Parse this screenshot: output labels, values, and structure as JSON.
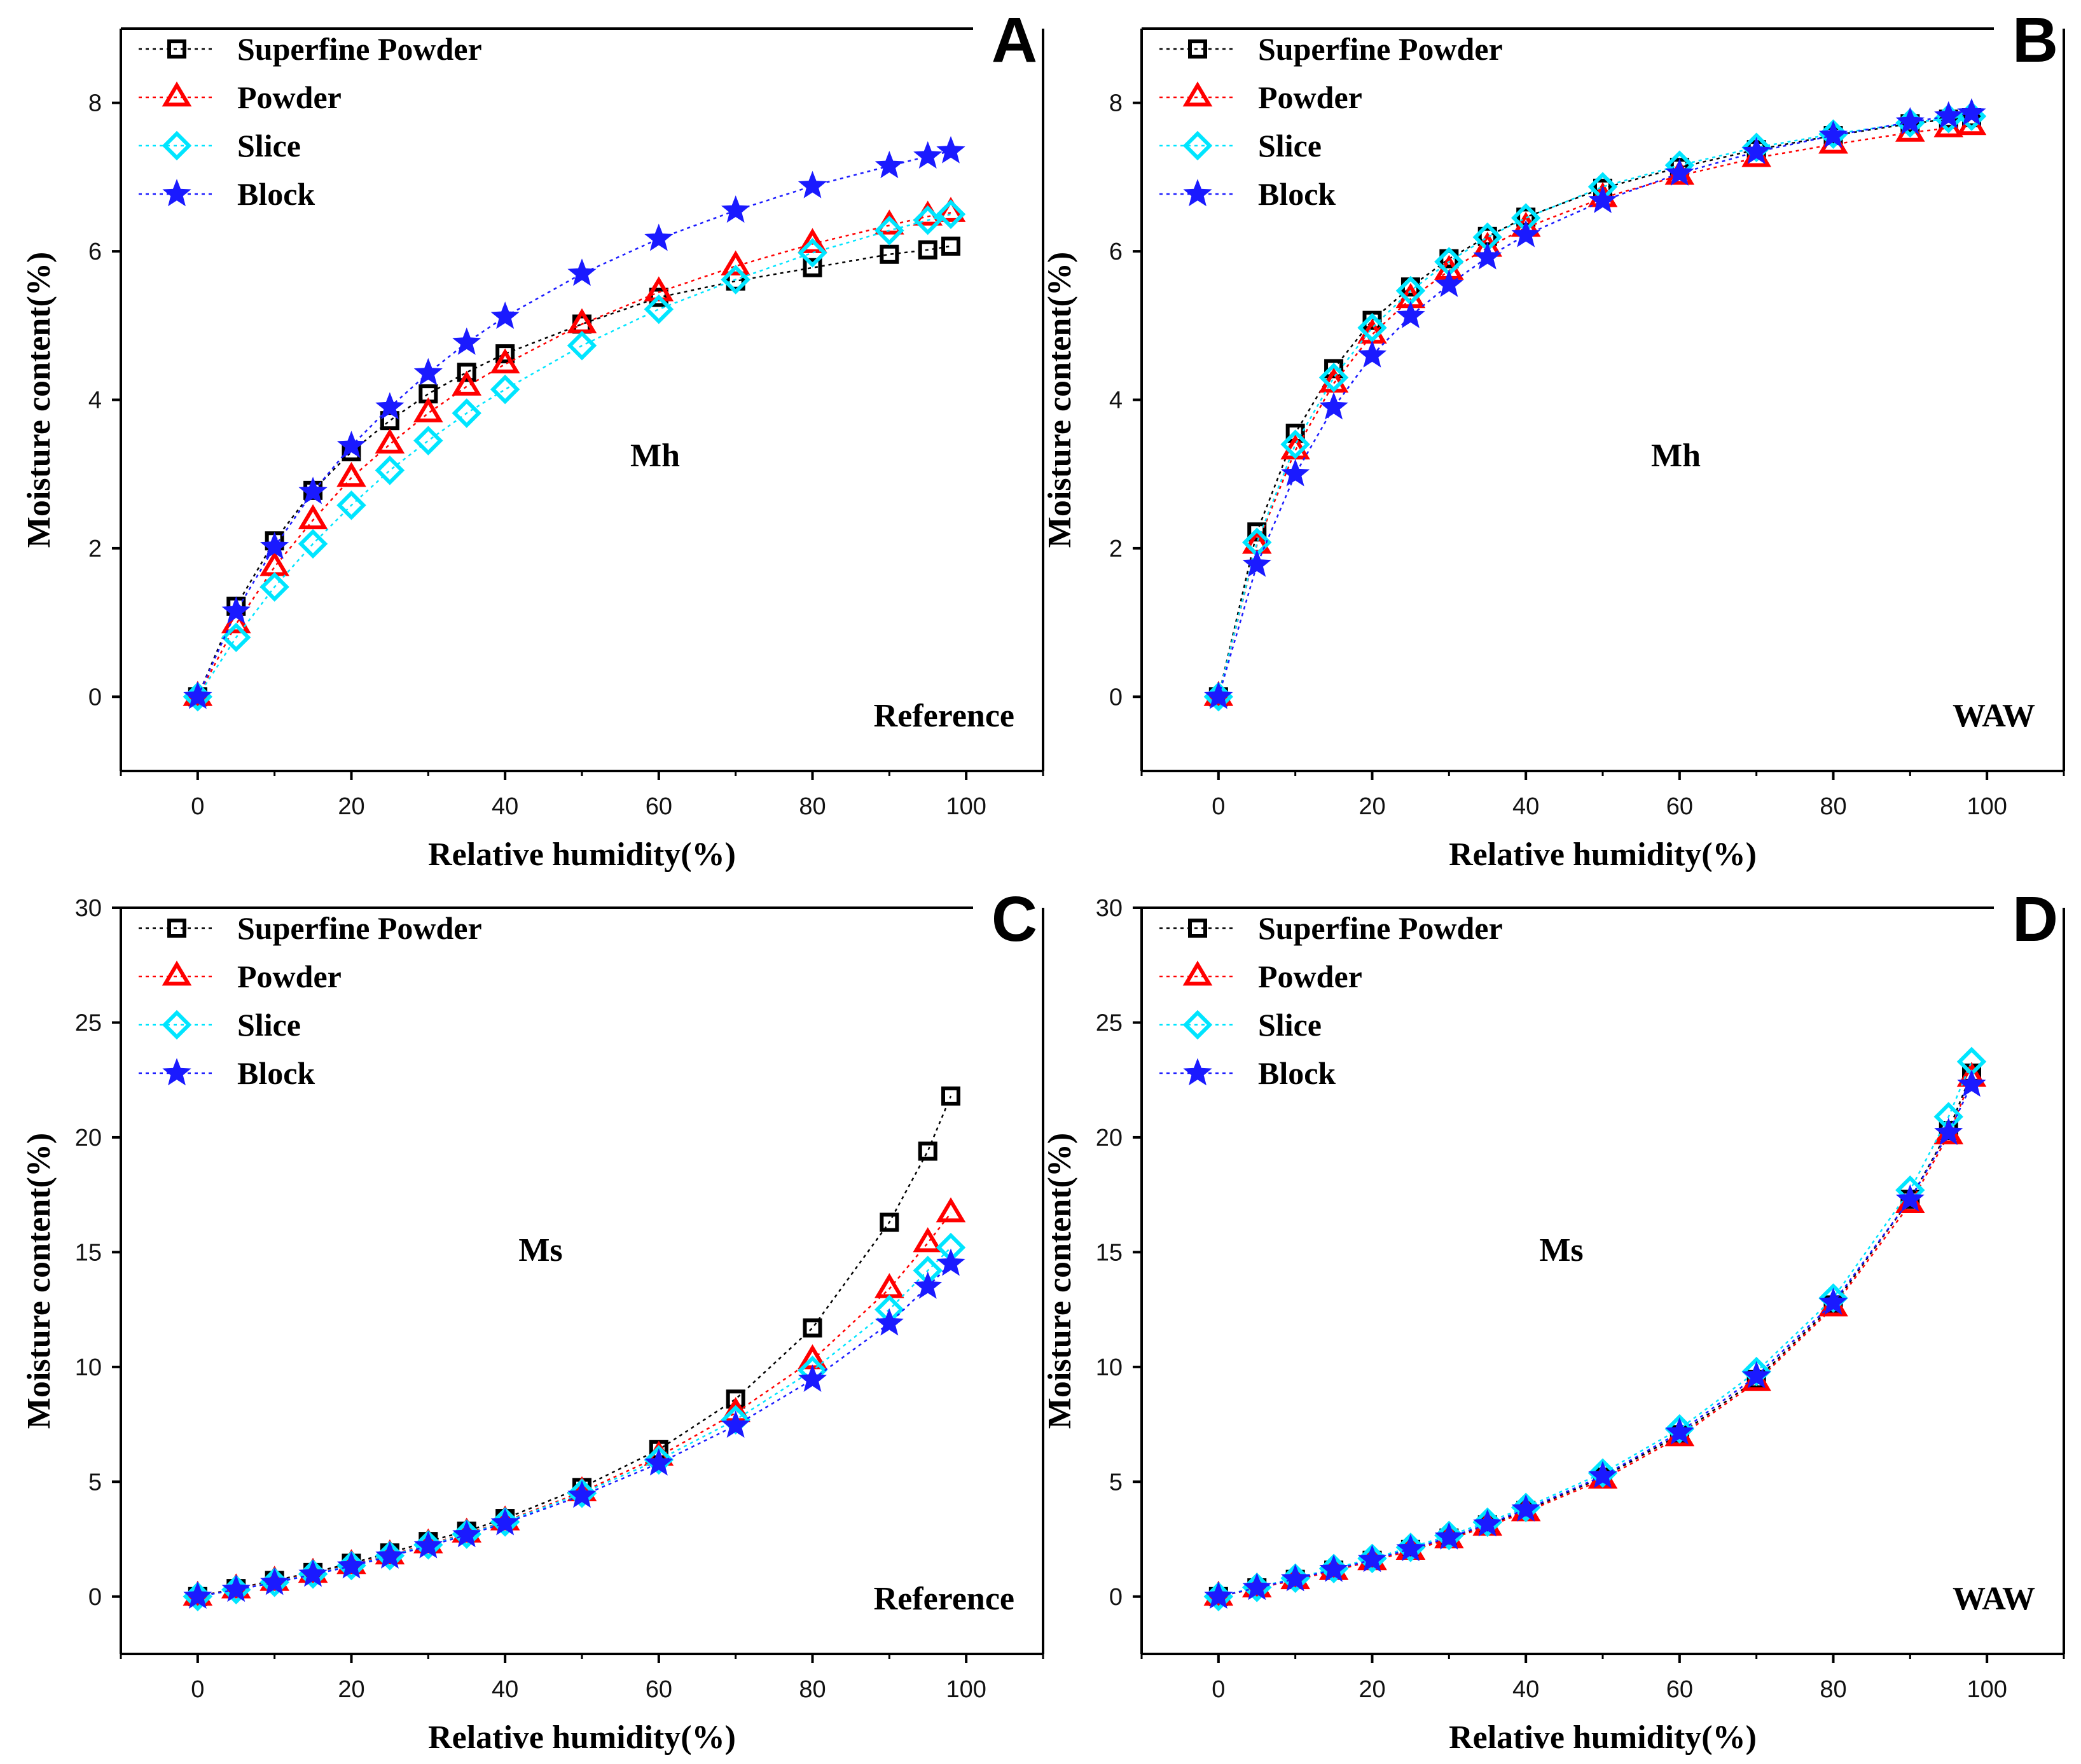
{
  "figure": {
    "panels": [
      {
        "letter": "A",
        "label": "Mh",
        "condition": "Reference"
      },
      {
        "letter": "B",
        "label": "Mh",
        "condition": "WAW"
      },
      {
        "letter": "C",
        "label": "Ms",
        "condition": "Reference"
      },
      {
        "letter": "D",
        "label": "Ms",
        "condition": "WAW"
      }
    ]
  },
  "series_styles": [
    {
      "name": "Superfine Powder",
      "color": "#000000",
      "marker": "square"
    },
    {
      "name": "Powder",
      "color": "#ff0000",
      "marker": "triangle"
    },
    {
      "name": "Slice",
      "color": "#00e5ff",
      "marker": "diamond"
    },
    {
      "name": "Block",
      "color": "#1a1aff",
      "marker": "star"
    }
  ],
  "chart_data": [
    {
      "type": "scatter",
      "panel": "A",
      "xlabel": "Relative humidity(%)",
      "ylabel": "Moisture content(%)",
      "xlim": [
        -10,
        110
      ],
      "ylim": [
        -1,
        9
      ],
      "xticks": [
        0,
        20,
        40,
        60,
        80,
        100
      ],
      "yticks": [
        0,
        2,
        4,
        6,
        8
      ],
      "legend": "top-left",
      "x": [
        0,
        5,
        10,
        15,
        20,
        25,
        30,
        35,
        40,
        50,
        60,
        70,
        80,
        90,
        95,
        98
      ],
      "series": [
        {
          "name": "Superfine Powder",
          "values": [
            0,
            1.22,
            2.1,
            2.78,
            3.3,
            3.72,
            4.08,
            4.37,
            4.62,
            5.02,
            5.38,
            5.6,
            5.78,
            5.96,
            6.02,
            6.07
          ]
        },
        {
          "name": "Powder",
          "values": [
            0,
            0.98,
            1.75,
            2.38,
            2.95,
            3.4,
            3.82,
            4.18,
            4.48,
            5.02,
            5.45,
            5.8,
            6.1,
            6.35,
            6.47,
            6.52
          ]
        },
        {
          "name": "Slice",
          "values": [
            0,
            0.8,
            1.48,
            2.06,
            2.58,
            3.05,
            3.45,
            3.82,
            4.14,
            4.73,
            5.22,
            5.62,
            5.98,
            6.28,
            6.42,
            6.5
          ]
        },
        {
          "name": "Block",
          "values": [
            0,
            1.15,
            2.02,
            2.76,
            3.38,
            3.9,
            4.36,
            4.77,
            5.12,
            5.7,
            6.17,
            6.55,
            6.88,
            7.15,
            7.28,
            7.35
          ]
        }
      ]
    },
    {
      "type": "scatter",
      "panel": "B",
      "xlabel": "Relative humidity(%)",
      "ylabel": "Moisture content(%)",
      "xlim": [
        -10,
        110
      ],
      "ylim": [
        -1,
        9
      ],
      "xticks": [
        0,
        20,
        40,
        60,
        80,
        100
      ],
      "yticks": [
        0,
        2,
        4,
        6,
        8
      ],
      "legend": "top-left",
      "x": [
        0,
        5,
        10,
        15,
        20,
        25,
        30,
        35,
        40,
        50,
        60,
        70,
        80,
        90,
        95,
        98
      ],
      "series": [
        {
          "name": "Superfine Powder",
          "values": [
            0,
            2.22,
            3.55,
            4.42,
            5.07,
            5.52,
            5.9,
            6.2,
            6.46,
            6.85,
            7.13,
            7.37,
            7.56,
            7.72,
            7.78,
            7.8
          ]
        },
        {
          "name": "Powder",
          "values": [
            0,
            2.05,
            3.32,
            4.22,
            4.88,
            5.36,
            5.74,
            6.05,
            6.32,
            6.72,
            7.02,
            7.26,
            7.44,
            7.6,
            7.66,
            7.69
          ]
        },
        {
          "name": "Slice",
          "values": [
            0,
            2.08,
            3.4,
            4.3,
            4.97,
            5.47,
            5.86,
            6.19,
            6.45,
            6.87,
            7.16,
            7.4,
            7.58,
            7.73,
            7.79,
            7.82
          ]
        },
        {
          "name": "Block",
          "values": [
            0,
            1.78,
            3.0,
            3.9,
            4.6,
            5.13,
            5.55,
            5.92,
            6.22,
            6.68,
            7.05,
            7.34,
            7.56,
            7.74,
            7.82,
            7.86
          ]
        }
      ]
    },
    {
      "type": "scatter",
      "panel": "C",
      "xlabel": "Relative humidity(%)",
      "ylabel": "Moisture content(%)",
      "xlim": [
        -10,
        110
      ],
      "ylim": [
        -2.5,
        30
      ],
      "xticks": [
        0,
        20,
        40,
        60,
        80,
        100
      ],
      "yticks": [
        0,
        5,
        10,
        15,
        20,
        25,
        30
      ],
      "legend": "top-left",
      "x": [
        0,
        5,
        10,
        15,
        20,
        25,
        30,
        35,
        40,
        50,
        60,
        70,
        80,
        90,
        95,
        98
      ],
      "series": [
        {
          "name": "Superfine Powder",
          "values": [
            0,
            0.35,
            0.7,
            1.05,
            1.45,
            1.9,
            2.4,
            2.85,
            3.4,
            4.75,
            6.4,
            8.6,
            11.7,
            16.3,
            19.4,
            21.8
          ]
        },
        {
          "name": "Powder",
          "values": [
            0,
            0.32,
            0.65,
            1.0,
            1.38,
            1.8,
            2.28,
            2.75,
            3.28,
            4.55,
            6.1,
            8.0,
            10.3,
            13.4,
            15.4,
            16.7
          ]
        },
        {
          "name": "Slice",
          "values": [
            0,
            0.3,
            0.62,
            0.98,
            1.35,
            1.78,
            2.25,
            2.72,
            3.25,
            4.5,
            5.95,
            7.7,
            9.85,
            12.5,
            14.2,
            15.2
          ]
        },
        {
          "name": "Block",
          "values": [
            0,
            0.3,
            0.6,
            0.96,
            1.32,
            1.75,
            2.2,
            2.68,
            3.2,
            4.4,
            5.8,
            7.45,
            9.45,
            11.9,
            13.5,
            14.5
          ]
        }
      ]
    },
    {
      "type": "scatter",
      "panel": "D",
      "xlabel": "Relative humidity(%)",
      "ylabel": "Moisture content(%)",
      "xlim": [
        -10,
        110
      ],
      "ylim": [
        -2.5,
        30
      ],
      "xticks": [
        0,
        20,
        40,
        60,
        80,
        100
      ],
      "yticks": [
        0,
        5,
        10,
        15,
        20,
        25,
        30
      ],
      "legend": "top-left",
      "x": [
        0,
        5,
        10,
        15,
        20,
        25,
        30,
        35,
        40,
        50,
        60,
        70,
        80,
        90,
        95,
        98
      ],
      "series": [
        {
          "name": "Superfine Powder",
          "values": [
            0,
            0.38,
            0.75,
            1.15,
            1.58,
            2.05,
            2.55,
            3.12,
            3.75,
            5.2,
            7.05,
            9.45,
            12.7,
            17.3,
            20.3,
            22.8
          ]
        },
        {
          "name": "Powder",
          "values": [
            0,
            0.36,
            0.72,
            1.12,
            1.55,
            2.0,
            2.5,
            3.05,
            3.68,
            5.1,
            6.95,
            9.35,
            12.6,
            17.1,
            20.1,
            22.6
          ]
        },
        {
          "name": "Slice",
          "values": [
            0,
            0.4,
            0.8,
            1.22,
            1.66,
            2.14,
            2.66,
            3.24,
            3.88,
            5.38,
            7.3,
            9.8,
            13.0,
            17.7,
            20.9,
            23.3
          ]
        },
        {
          "name": "Block",
          "values": [
            0,
            0.38,
            0.76,
            1.17,
            1.6,
            2.07,
            2.58,
            3.15,
            3.8,
            5.25,
            7.15,
            9.6,
            12.8,
            17.3,
            20.2,
            22.3
          ]
        }
      ]
    }
  ]
}
